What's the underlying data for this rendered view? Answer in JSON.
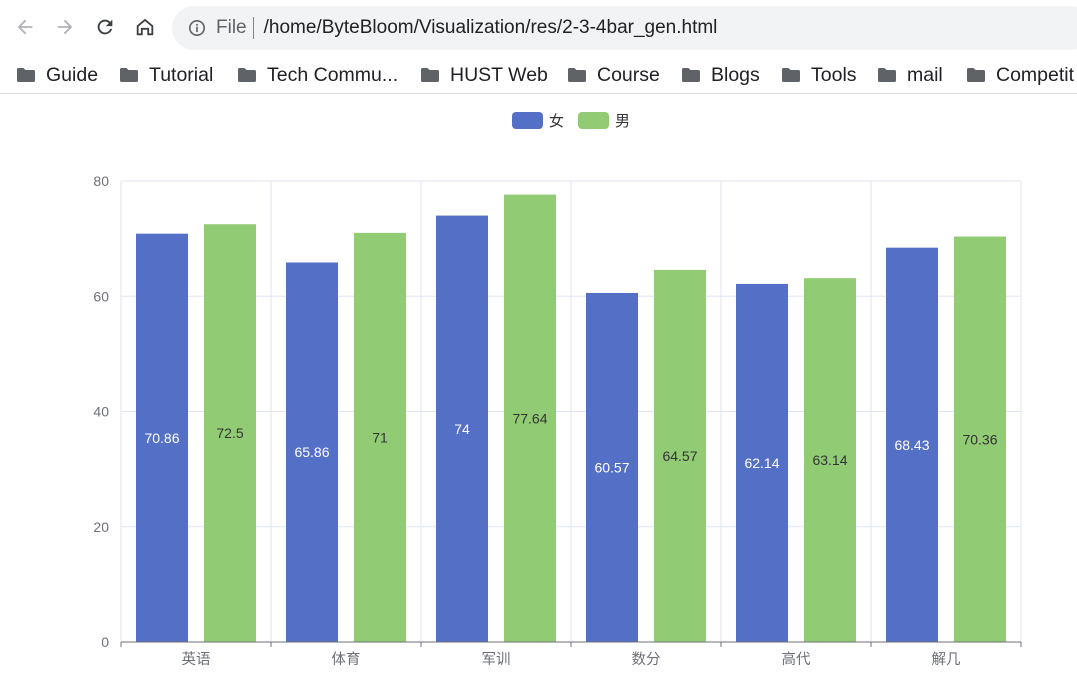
{
  "browser": {
    "back_icon": "arrow-left-icon",
    "forward_icon": "arrow-right-icon",
    "reload_icon": "reload-icon",
    "home_icon": "home-icon",
    "address": {
      "scheme_label": "File",
      "url": "/home/ByteBloom/Visualization/res/2-3-4bar_gen.html"
    }
  },
  "bookmarks": [
    {
      "label": "Guide",
      "icon": "folder-icon"
    },
    {
      "label": "Tutorial",
      "icon": "folder-icon"
    },
    {
      "label": "Tech Commu...",
      "icon": "folder-icon"
    },
    {
      "label": "HUST Web",
      "icon": "folder-icon"
    },
    {
      "label": "Course",
      "icon": "folder-icon"
    },
    {
      "label": "Blogs",
      "icon": "folder-icon"
    },
    {
      "label": "Tools",
      "icon": "folder-icon"
    },
    {
      "label": "mail",
      "icon": "folder-icon"
    },
    {
      "label": "Competit",
      "icon": "folder-icon"
    }
  ],
  "colors": {
    "series_1": "#5470c6",
    "series_2": "#91cc75"
  },
  "chart_data": {
    "type": "bar",
    "categories": [
      "英语",
      "体育",
      "军训",
      "数分",
      "高代",
      "解几"
    ],
    "series": [
      {
        "name": "女",
        "values": [
          70.86,
          65.86,
          74,
          60.57,
          62.14,
          68.43
        ]
      },
      {
        "name": "男",
        "values": [
          72.5,
          71,
          77.64,
          64.57,
          63.14,
          70.36
        ]
      }
    ],
    "ylim": [
      0,
      80
    ],
    "yticks": [
      0,
      20,
      40,
      60,
      80
    ],
    "grid": true,
    "legend_position": "top-center",
    "data_labels": "inside"
  }
}
